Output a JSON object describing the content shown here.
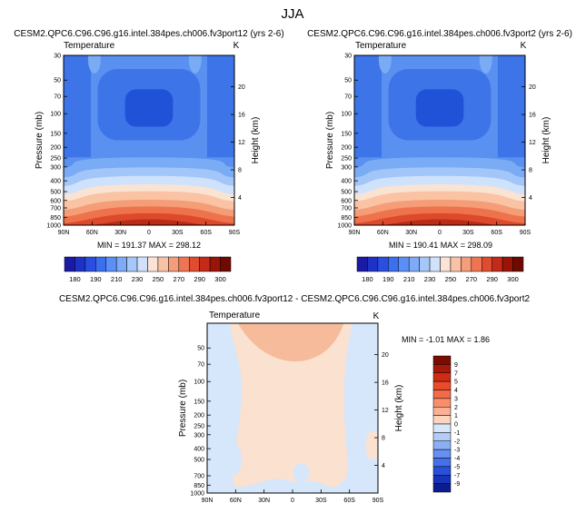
{
  "title": "JJA",
  "panels": [
    {
      "title": "CESM2.QPC6.C96.C96.g16.intel.384pes.ch006.fv3port12 (yrs 2-6)",
      "var_label": "Temperature",
      "units": "K",
      "stats": "MIN = 191.37   MAX = 298.12"
    },
    {
      "title": "CESM2.QPC6.C96.C96.g16.intel.384pes.ch006.fv3port2 (yrs 2-6)",
      "var_label": "Temperature",
      "units": "K",
      "stats": "MIN = 190.41   MAX = 298.09"
    },
    {
      "title": "CESM2.QPC6.C96.C96.g16.intel.384pes.ch006.fv3port12 - CESM2.QPC6.C96.C96.g16.intel.384pes.ch006.fv3port2",
      "var_label": "Temperature",
      "units": "K",
      "stats": "MIN =  -1.01   MAX =   1.86"
    }
  ],
  "chart_data": [
    {
      "type": "heatmap",
      "title": "CESM2.QPC6.C96.C96.g16.intel.384pes.ch006.fv3port12 (yrs 2-6)",
      "xlabel": "",
      "ylabel": "Pressure (mb)",
      "ylabel_right": "Height (km)",
      "x_ticks": [
        "90N",
        "60N",
        "30N",
        "0",
        "30S",
        "60S",
        "90S"
      ],
      "y_ticks": [
        "30",
        "50",
        "70",
        "100",
        "150",
        "200",
        "250",
        "300",
        "400",
        "500",
        "600",
        "700",
        "850",
        "1000"
      ],
      "y_right_ticks": [
        "4",
        "8",
        "12",
        "16",
        "20"
      ],
      "x_range": [
        90,
        -90
      ],
      "y_range_mb": [
        1000,
        30
      ],
      "min": 191.37,
      "max": 298.12
    },
    {
      "type": "heatmap",
      "title": "CESM2.QPC6.C96.C96.g16.intel.384pes.ch006.fv3port2 (yrs 2-6)",
      "xlabel": "",
      "ylabel": "Pressure (mb)",
      "ylabel_right": "Height (km)",
      "x_ticks": [
        "90N",
        "60N",
        "30N",
        "0",
        "30S",
        "60S",
        "90S"
      ],
      "y_ticks": [
        "30",
        "50",
        "70",
        "100",
        "150",
        "200",
        "250",
        "300",
        "400",
        "500",
        "600",
        "700",
        "850",
        "1000"
      ],
      "y_right_ticks": [
        "4",
        "8",
        "12",
        "16",
        "20"
      ],
      "x_range": [
        90,
        -90
      ],
      "y_range_mb": [
        1000,
        30
      ],
      "min": 190.41,
      "max": 298.09
    },
    {
      "type": "heatmap",
      "title": "CESM2.QPC6.C96.C96.g16.intel.384pes.ch006.fv3port12 - CESM2.QPC6.C96.C96.g16.intel.384pes.ch006.fv3port2",
      "xlabel": "",
      "ylabel": "Pressure (mb)",
      "ylabel_right": "Height (km)",
      "x_ticks": [
        "90N",
        "60N",
        "30N",
        "0",
        "30S",
        "60S",
        "90S"
      ],
      "y_ticks": [
        "50",
        "70",
        "100",
        "150",
        "200",
        "250",
        "300",
        "400",
        "500",
        "700",
        "850",
        "1000"
      ],
      "y_right_ticks": [
        "4",
        "8",
        "12",
        "16",
        "20"
      ],
      "x_range": [
        90,
        -90
      ],
      "y_range_mb": [
        1000,
        30
      ],
      "min": -1.01,
      "max": 1.86
    }
  ],
  "colorbar_top": {
    "labels": [
      "180",
      "190",
      "210",
      "230",
      "250",
      "270",
      "290",
      "300"
    ],
    "colors": [
      "#1a1aa6",
      "#1f32c8",
      "#2a4fe0",
      "#3a6ff0",
      "#5a8ff5",
      "#7eaaf7",
      "#a6c8f9",
      "#cfe1fb",
      "#fbe3d6",
      "#f8c2a6",
      "#f59c7a",
      "#ef7552",
      "#e04c2f",
      "#c42a1a",
      "#9a1408",
      "#6e0a02"
    ]
  },
  "colorbar_diff": {
    "labels": [
      "9",
      "7",
      "5",
      "4",
      "3",
      "2",
      "1",
      "0",
      "-1",
      "-2",
      "-3",
      "-4",
      "-5",
      "-7",
      "-9"
    ],
    "colors": [
      "#7a0c04",
      "#a81808",
      "#d02c14",
      "#ea4b2a",
      "#f36b48",
      "#f88e6c",
      "#fbb195",
      "#fdd4be",
      "#d6e7fb",
      "#b1cdf8",
      "#8aaff4",
      "#668ff0",
      "#4570ea",
      "#2a4fd9",
      "#1733b8",
      "#0b1d8c"
    ]
  },
  "field_colors": {
    "deep": "#1f52d6",
    "mid": "#3d74e8",
    "light": "#5a90f0",
    "pale": "#7aabf5",
    "paler": "#a2c6f9",
    "palest": "#cfe2fb",
    "warm1": "#fbe3d3",
    "warm2": "#f9c3a4",
    "warm3": "#f59d77",
    "warm4": "#ee734d",
    "warm5": "#dc4a2b",
    "warm6": "#bb2c16",
    "diff_pos": "#fbe1cf",
    "diff_neg": "#d6e7fb",
    "diff_pos2": "#f6bb9a"
  }
}
